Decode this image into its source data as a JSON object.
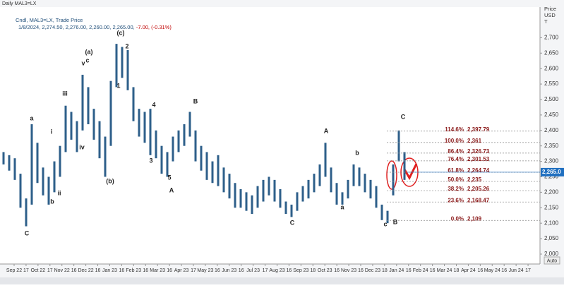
{
  "chart_data": {
    "type": "range-bar",
    "title": "Daily MAL3=LX",
    "subtitle": "Cndl, MAL3=LX, Trade Price",
    "last_line_date": "1/8/2024, 2,274.50, 2,276.00, 2,260.00, 2,265.00,",
    "last_line_change": "-7.00, (-0.31%)",
    "y_axis_label": [
      "Price",
      "USD",
      "T"
    ],
    "color": "#2e5f8a",
    "high": [
      2330,
      2320,
      2310,
      2260,
      2180,
      2420,
      2360,
      2280,
      2250,
      2300,
      2350,
      2480,
      2460,
      2430,
      2580,
      2540,
      2470,
      2430,
      2380,
      2560,
      2680,
      2670,
      2660,
      2540,
      2470,
      2460,
      2470,
      2400,
      2350,
      2330,
      2380,
      2400,
      2420,
      2460,
      2400,
      2350,
      2330,
      2300,
      2320,
      2280,
      2260,
      2230,
      2210,
      2200,
      2190,
      2220,
      2240,
      2250,
      2240,
      2210,
      2170,
      2160,
      2200,
      2220,
      2240,
      2260,
      2290,
      2360,
      2280,
      2230,
      2200,
      2240,
      2290,
      2280,
      2260,
      2240,
      2220,
      2160,
      2140,
      2290,
      2400,
      2330
    ],
    "low": [
      2290,
      2270,
      2240,
      2150,
      2090,
      2160,
      2230,
      2190,
      2160,
      2200,
      2250,
      2330,
      2370,
      2330,
      2400,
      2420,
      2370,
      2310,
      2250,
      2350,
      2540,
      2570,
      2530,
      2430,
      2380,
      2360,
      2320,
      2310,
      2260,
      2250,
      2300,
      2330,
      2350,
      2380,
      2300,
      2270,
      2240,
      2230,
      2220,
      2200,
      2180,
      2150,
      2150,
      2140,
      2130,
      2150,
      2170,
      2190,
      2170,
      2150,
      2130,
      2120,
      2140,
      2170,
      2180,
      2200,
      2220,
      2250,
      2200,
      2160,
      2160,
      2180,
      2220,
      2220,
      2200,
      2180,
      2150,
      2110,
      2100,
      2190,
      2300,
      2240
    ],
    "last_price": {
      "value": 2265,
      "label": "2,265.0"
    },
    "ylim": [
      1968,
      2799
    ],
    "yticks": [
      {
        "value": 2000,
        "label": "2,000"
      },
      {
        "value": 2050,
        "label": "2,050"
      },
      {
        "value": 2100,
        "label": "2,100"
      },
      {
        "value": 2150,
        "label": "2,150"
      },
      {
        "value": 2200,
        "label": "2,200"
      },
      {
        "value": 2250,
        "label": "2,250"
      },
      {
        "value": 2300,
        "label": "2,300"
      },
      {
        "value": 2350,
        "label": "2,350"
      },
      {
        "value": 2400,
        "label": "2,400"
      },
      {
        "value": 2450,
        "label": "2,450"
      },
      {
        "value": 2500,
        "label": "2,500"
      },
      {
        "value": 2550,
        "label": "2,550"
      },
      {
        "value": 2600,
        "label": "2,600"
      },
      {
        "value": 2650,
        "label": "2,650"
      },
      {
        "value": 2700,
        "label": "2,700"
      }
    ],
    "x_labels": [
      "Sep 22",
      "17",
      "Oct 22",
      "17",
      "Nov 22",
      "16",
      "Dec 22",
      "16",
      "Jan 23",
      "16",
      "Feb 23",
      "16",
      "Mar 23",
      "16",
      "Apr 23",
      "17",
      "May 23",
      "16",
      "Jun 23",
      "16",
      "Jul 23",
      "17",
      "Aug 23",
      "16",
      "Sep 23",
      "18",
      "Oct 23",
      "16",
      "Nov 23",
      "16",
      "Dec 23",
      "18",
      "Jan 24",
      "16",
      "Feb 24",
      "16",
      "Mar 24",
      "18",
      "Apr 24",
      "16",
      "May 24",
      "16",
      "Jun 24",
      "17"
    ],
    "fib_levels": [
      {
        "pct": "114.6%",
        "value": 2397.79,
        "label": "2,397.79"
      },
      {
        "pct": "100.0%",
        "value": 2361,
        "label": "2,361"
      },
      {
        "pct": "86.4%",
        "value": 2326.73,
        "label": "2,326.73"
      },
      {
        "pct": "76.4%",
        "value": 2301.53,
        "label": "2,301.53"
      },
      {
        "pct": "61.8%",
        "value": 2264.74,
        "label": "2,264.74"
      },
      {
        "pct": "50.0%",
        "value": 2235,
        "label": "2,235"
      },
      {
        "pct": "38.2%",
        "value": 2205.26,
        "label": "2,205.26"
      },
      {
        "pct": "23.6%",
        "value": 2168.47,
        "label": "2,168.47"
      },
      {
        "pct": "0.0%",
        "value": 2109,
        "label": "2,109"
      }
    ],
    "annotations": [
      "(c)",
      "2",
      "(a)",
      "v",
      "c",
      "iii",
      "i",
      "iv",
      "ii",
      "a",
      "b",
      "C",
      "1",
      "4",
      "3",
      "5",
      "(b)",
      "A",
      "B",
      "C",
      "A",
      "a",
      "b",
      "c",
      "B",
      "C"
    ],
    "auto_button": "Auto"
  }
}
